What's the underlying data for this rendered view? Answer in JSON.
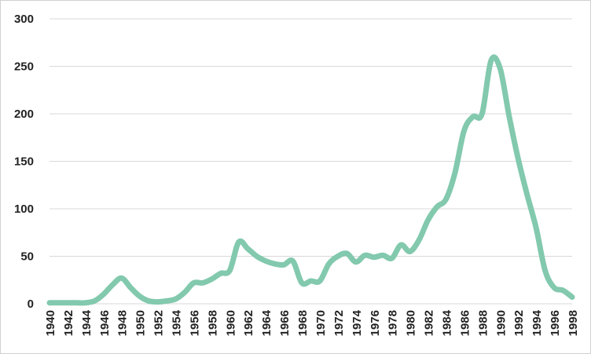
{
  "chart_data": {
    "type": "line",
    "title": "",
    "xlabel": "",
    "ylabel": "",
    "xlim": [
      1940,
      1998
    ],
    "ylim": [
      0,
      300
    ],
    "grid": true,
    "legend": "none",
    "line_color": "#82C9AE",
    "grid_color": "#D9D9D9",
    "y_ticks": [
      "0",
      "50",
      "100",
      "150",
      "200",
      "250",
      "300"
    ],
    "x_ticks": [
      "1940",
      "1942",
      "1944",
      "1946",
      "1948",
      "1950",
      "1952",
      "1954",
      "1956",
      "1958",
      "1960",
      "1962",
      "1964",
      "1966",
      "1968",
      "1970",
      "1972",
      "1974",
      "1976",
      "1978",
      "1980",
      "1982",
      "1984",
      "1986",
      "1988",
      "1990",
      "1992",
      "1994",
      "1996",
      "1998"
    ],
    "x": [
      1940,
      1941,
      1942,
      1943,
      1944,
      1945,
      1946,
      1947,
      1948,
      1949,
      1950,
      1951,
      1952,
      1953,
      1954,
      1955,
      1956,
      1957,
      1958,
      1959,
      1960,
      1961,
      1962,
      1963,
      1964,
      1965,
      1966,
      1967,
      1968,
      1969,
      1970,
      1971,
      1972,
      1973,
      1974,
      1975,
      1976,
      1977,
      1978,
      1979,
      1980,
      1981,
      1982,
      1983,
      1984,
      1985,
      1986,
      1987,
      1988,
      1989,
      1990,
      1991,
      1992,
      1993,
      1994,
      1995,
      1996,
      1997,
      1998
    ],
    "series": [
      {
        "values": [
          1,
          1,
          1,
          1,
          1,
          3,
          10,
          20,
          27,
          17,
          8,
          3,
          2,
          3,
          5,
          12,
          22,
          22,
          26,
          32,
          35,
          65,
          58,
          50,
          45,
          42,
          41,
          45,
          22,
          24,
          24,
          42,
          50,
          53,
          44,
          51,
          49,
          51,
          48,
          62,
          55,
          67,
          88,
          102,
          110,
          138,
          182,
          197,
          200,
          256,
          248,
          198,
          153,
          115,
          80,
          35,
          17,
          14,
          7
        ]
      }
    ]
  }
}
